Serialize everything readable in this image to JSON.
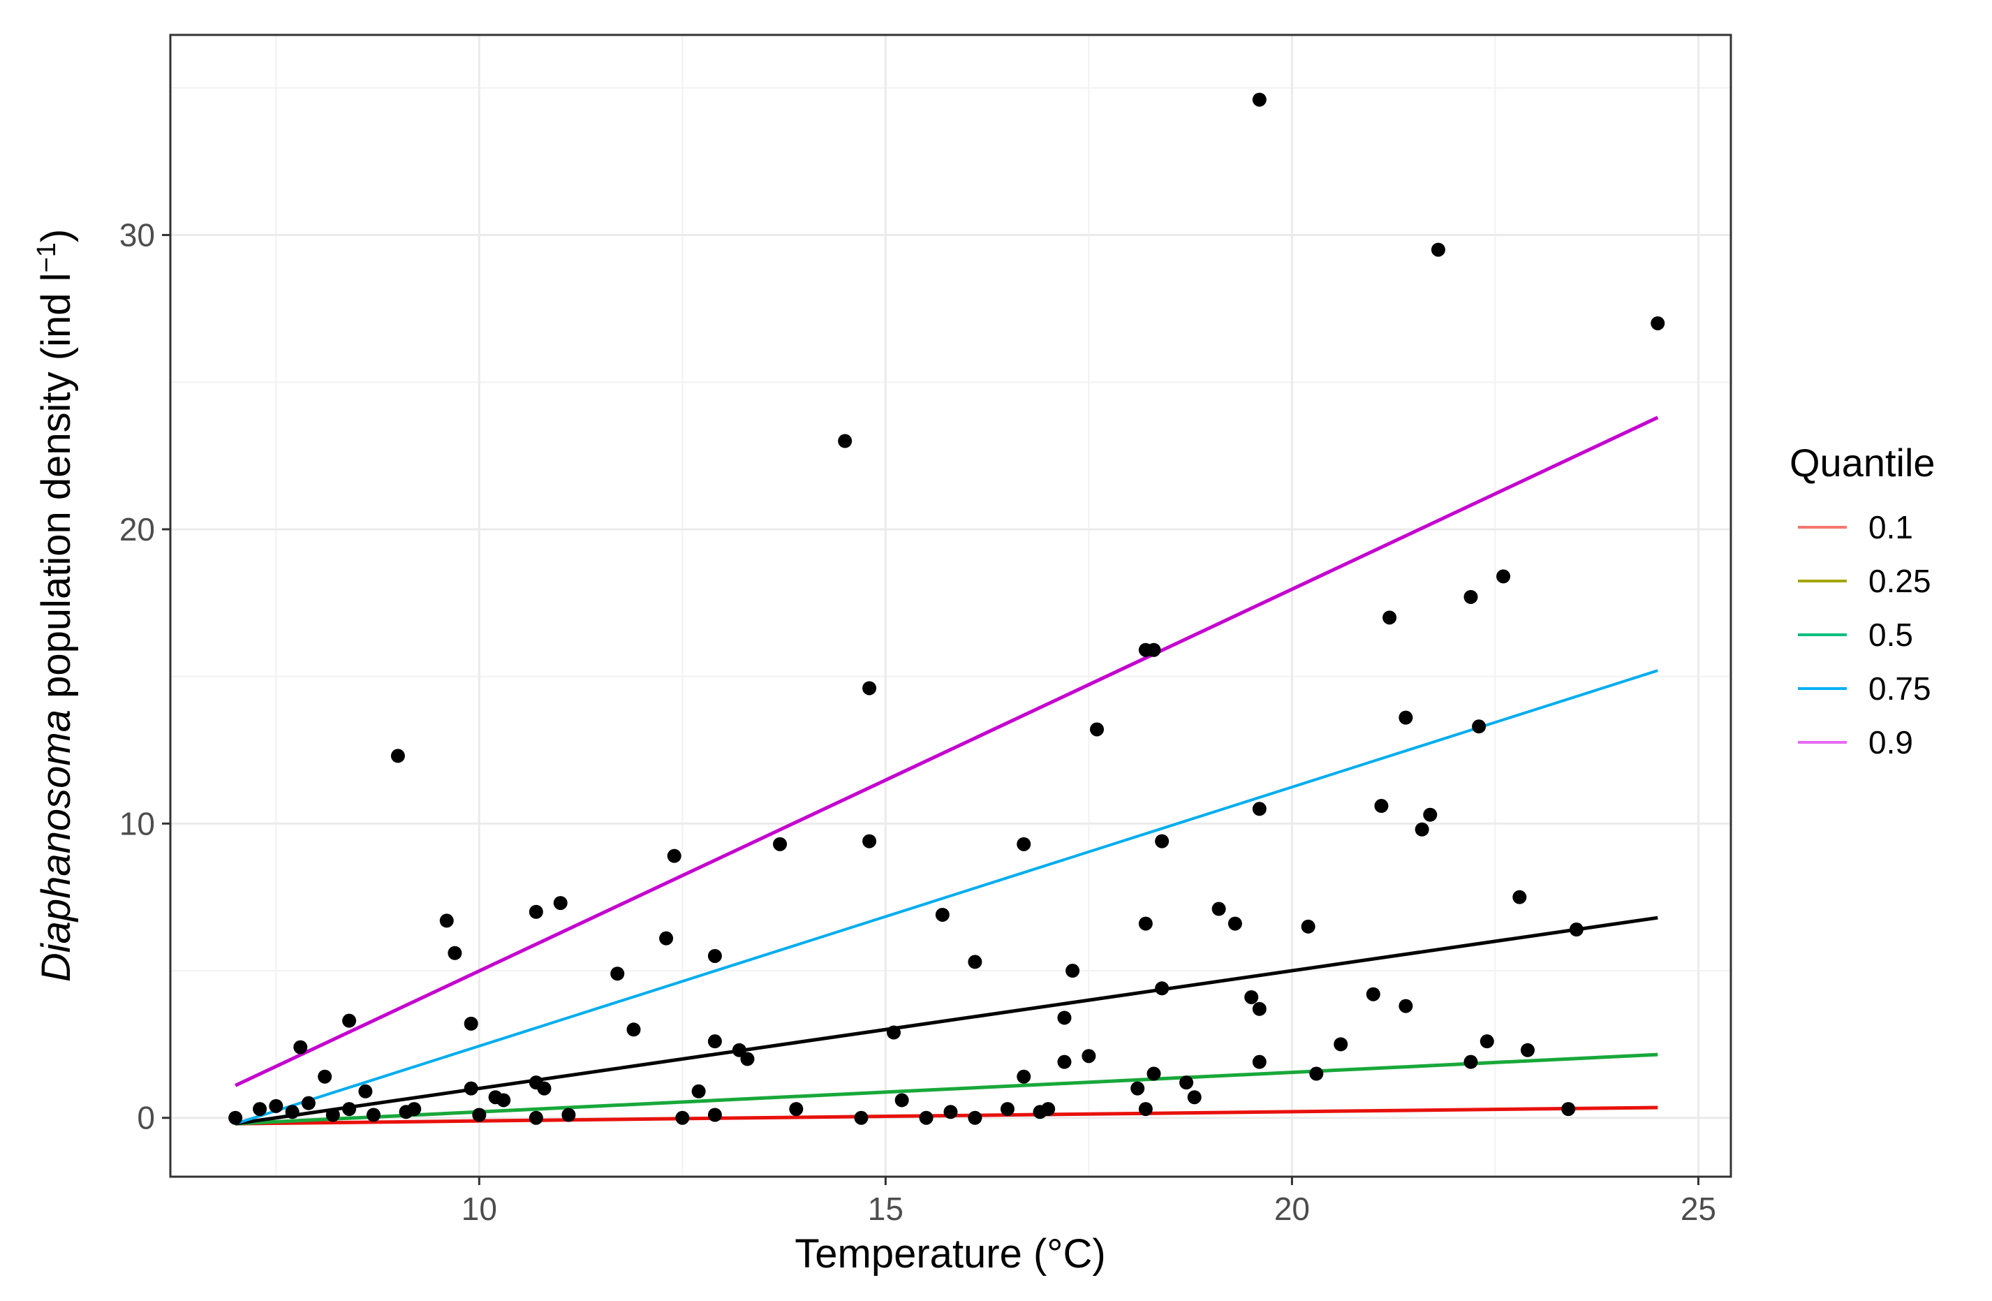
{
  "chart_data": {
    "type": "scatter",
    "xlabel": "Temperature (°C)",
    "ylabel": {
      "italic": "Diaphanosoma",
      "rest": " population density (ind l",
      "sup": "−1",
      "close": ")"
    },
    "xlim": [
      6.2,
      25.4
    ],
    "ylim": [
      -2,
      36.8
    ],
    "x_ticks": [
      10,
      15,
      20,
      25
    ],
    "y_ticks": [
      0,
      10,
      20,
      30
    ],
    "x_tick_labels": [
      "10",
      "15",
      "20",
      "25"
    ],
    "y_tick_labels": [
      "0",
      "10",
      "20",
      "30"
    ],
    "grid": true,
    "legend": {
      "title": "Quantile",
      "position": "right",
      "entries": [
        {
          "label": "0.1",
          "color": "#F8766D"
        },
        {
          "label": "0.25",
          "color": "#A3A500"
        },
        {
          "label": "0.5",
          "color": "#00BF7D"
        },
        {
          "label": "0.75",
          "color": "#00B0F6"
        },
        {
          "label": "0.9",
          "color": "#E76BF3"
        }
      ]
    },
    "lines": [
      {
        "name": "q0.1",
        "color": "#E8110C",
        "x": [
          7.0,
          24.5
        ],
        "y": [
          -0.2,
          0.35
        ]
      },
      {
        "name": "q0.5-green",
        "color": "#18A83A",
        "x": [
          7.0,
          24.5
        ],
        "y": [
          -0.2,
          2.15
        ]
      },
      {
        "name": "q0.5-black",
        "color": "#000000",
        "x": [
          7.0,
          24.5
        ],
        "y": [
          -0.2,
          6.8
        ]
      },
      {
        "name": "q0.75",
        "color": "#00ADEE",
        "x": [
          7.0,
          24.5
        ],
        "y": [
          -0.2,
          15.2
        ]
      },
      {
        "name": "q0.9",
        "color": "#C400CF",
        "x": [
          7.0,
          24.5
        ],
        "y": [
          1.1,
          23.8
        ]
      }
    ],
    "points": {
      "x": [
        19.6,
        21.8,
        24.5,
        14.5,
        9.0,
        14.8,
        22.6,
        22.2,
        21.2,
        18.2,
        18.3,
        17.6,
        21.4,
        22.3,
        13.7,
        14.8,
        16.7,
        18.4,
        19.6,
        21.1,
        21.7,
        21.6,
        12.4,
        11.0,
        10.7,
        9.6,
        15.7,
        12.3,
        9.7,
        19.1,
        18.2,
        19.3,
        20.2,
        22.8,
        23.5,
        12.9,
        17.3,
        16.1,
        11.7,
        18.4,
        19.5,
        19.6,
        21.0,
        21.4,
        17.2,
        7.8,
        8.4,
        9.9,
        11.9,
        12.9,
        15.1,
        13.2,
        13.3,
        17.2,
        17.5,
        19.6,
        20.6,
        22.4,
        22.9,
        22.2,
        16.7,
        18.3,
        20.3,
        8.1,
        18.7,
        18.1,
        8.6,
        10.2,
        10.3,
        10.7,
        10.8,
        9.9,
        12.7,
        15.2,
        18.8,
        7.0,
        7.3,
        7.5,
        7.7,
        7.9,
        8.2,
        8.4,
        8.7,
        9.1,
        9.2,
        10.0,
        10.7,
        11.1,
        12.5,
        12.9,
        13.9,
        14.7,
        15.5,
        15.8,
        16.1,
        16.5,
        16.9,
        17.0,
        18.2,
        23.4
      ],
      "y": [
        34.6,
        29.5,
        27.0,
        23.0,
        12.3,
        14.6,
        18.4,
        17.7,
        17.0,
        15.9,
        15.9,
        13.2,
        13.6,
        13.3,
        9.3,
        9.4,
        9.3,
        9.4,
        10.5,
        10.6,
        10.3,
        9.8,
        8.9,
        7.3,
        7.0,
        6.7,
        6.9,
        6.1,
        5.6,
        7.1,
        6.6,
        6.6,
        6.5,
        7.5,
        6.4,
        5.5,
        5.0,
        5.3,
        4.9,
        4.4,
        4.1,
        3.7,
        4.2,
        3.8,
        3.4,
        2.4,
        3.3,
        3.2,
        3.0,
        2.6,
        2.9,
        2.3,
        2.0,
        1.9,
        2.1,
        1.9,
        2.5,
        2.6,
        2.3,
        1.9,
        1.4,
        1.5,
        1.5,
        1.4,
        1.2,
        1.0,
        0.9,
        0.7,
        0.6,
        1.2,
        1.0,
        1.0,
        0.9,
        0.6,
        0.7,
        0.0,
        0.3,
        0.4,
        0.2,
        0.5,
        0.1,
        0.3,
        0.1,
        0.2,
        0.3,
        0.1,
        0.0,
        0.1,
        0.0,
        0.1,
        0.3,
        0.0,
        0.0,
        0.2,
        0.0,
        0.3,
        0.2,
        0.3,
        0.3,
        0.3
      ]
    }
  }
}
